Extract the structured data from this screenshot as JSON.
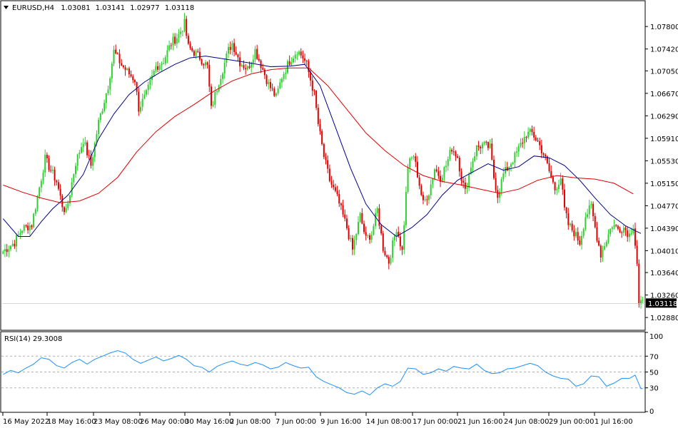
{
  "header": {
    "symbol": "EURUSD,H4",
    "open": "1.03081",
    "high": "1.03141",
    "low": "1.02977",
    "close": "1.03118"
  },
  "colors": {
    "bull": "#32cd32",
    "bear": "#e00000",
    "ma_fast": "#00008b",
    "ma_slow": "#e00000",
    "rsi": "#1e90ff",
    "current_price_label_bg": "#000000"
  },
  "current_price": 1.03118,
  "rsi_title": "RSI(14) 29.3008",
  "chart_data": [
    {
      "type": "line",
      "subtype": "candlestick",
      "title": "EURUSD,H4",
      "ylim": [
        1.027,
        1.082
      ],
      "y_ticks": [
        "1.07800",
        "1.07420",
        "1.07050",
        "1.06670",
        "1.06290",
        "1.05910",
        "1.05530",
        "1.05150",
        "1.04770",
        "1.04390",
        "1.04010",
        "1.03640",
        "1.03260",
        "1.02880"
      ],
      "x_ticks": [
        "16 May 2022",
        "18 May 16:00",
        "23 May 08:00",
        "26 May 00:00",
        "30 May 16:00",
        "2 Jun 08:00",
        "7 Jun 00:00",
        "9 Jun 16:00",
        "14 Jun 08:00",
        "17 Jun 00:00",
        "21 Jun 16:00",
        "24 Jun 08:00",
        "29 Jun 00:00",
        "1 Jul 16:00"
      ],
      "grid": false,
      "price_path": [
        [
          0,
          1.04
        ],
        [
          6,
          1.0415
        ],
        [
          10,
          1.0438
        ],
        [
          15,
          1.0445
        ],
        [
          18,
          1.0492
        ],
        [
          22,
          1.0556
        ],
        [
          28,
          1.0518
        ],
        [
          31,
          1.0478
        ],
        [
          33,
          1.0465
        ],
        [
          38,
          1.055
        ],
        [
          42,
          1.0588
        ],
        [
          46,
          1.0545
        ],
        [
          50,
          1.0618
        ],
        [
          55,
          1.068
        ],
        [
          58,
          1.0738
        ],
        [
          62,
          1.0715
        ],
        [
          66,
          1.07
        ],
        [
          69,
          1.069
        ],
        [
          71,
          1.0642
        ],
        [
          75,
          1.0665
        ],
        [
          80,
          1.0712
        ],
        [
          84,
          1.0722
        ],
        [
          88,
          1.0752
        ],
        [
          92,
          1.0766
        ],
        [
          95,
          1.0785
        ],
        [
          97,
          1.0745
        ],
        [
          103,
          1.0728
        ],
        [
          107,
          1.0712
        ],
        [
          109,
          1.064
        ],
        [
          113,
          1.0688
        ],
        [
          116,
          1.0718
        ],
        [
          118,
          1.074
        ],
        [
          120,
          1.0752
        ],
        [
          124,
          1.072
        ],
        [
          128,
          1.0708
        ],
        [
          132,
          1.074
        ],
        [
          135,
          1.0716
        ],
        [
          139,
          1.0682
        ],
        [
          143,
          1.066
        ],
        [
          146,
          1.0695
        ],
        [
          150,
          1.0722
        ],
        [
          154,
          1.074
        ],
        [
          157,
          1.0728
        ],
        [
          159,
          1.0715
        ],
        [
          163,
          1.0665
        ],
        [
          165,
          1.0615
        ],
        [
          168,
          1.056
        ],
        [
          171,
          1.052
        ],
        [
          175,
          1.049
        ],
        [
          180,
          1.044
        ],
        [
          183,
          1.0402
        ],
        [
          187,
          1.046
        ],
        [
          190,
          1.042
        ],
        [
          193,
          1.043
        ],
        [
          196,
          1.047
        ],
        [
          199,
          1.0406
        ],
        [
          202,
          1.0382
        ],
        [
          206,
          1.044
        ],
        [
          209,
          1.04
        ],
        [
          212,
          1.0545
        ],
        [
          215,
          1.0562
        ],
        [
          217,
          1.053
        ],
        [
          220,
          1.048
        ],
        [
          223,
          1.05
        ],
        [
          226,
          1.054
        ],
        [
          229,
          1.0525
        ],
        [
          232,
          1.0545
        ],
        [
          235,
          1.0575
        ],
        [
          238,
          1.056
        ],
        [
          240,
          1.0525
        ],
        [
          242,
          1.05
        ],
        [
          245,
          1.0545
        ],
        [
          248,
          1.0575
        ],
        [
          251,
          1.058
        ],
        [
          255,
          1.0575
        ],
        [
          257,
          1.0525
        ],
        [
          259,
          1.0495
        ],
        [
          262,
          1.053
        ],
        [
          265,
          1.0545
        ],
        [
          268,
          1.056
        ],
        [
          271,
          1.058
        ],
        [
          274,
          1.0598
        ],
        [
          277,
          1.06
        ],
        [
          280,
          1.0585
        ],
        [
          283,
          1.0565
        ],
        [
          286,
          1.0535
        ],
        [
          289,
          1.0505
        ],
        [
          292,
          1.0525
        ],
        [
          294,
          1.047
        ],
        [
          296,
          1.0445
        ],
        [
          299,
          1.0432
        ],
        [
          302,
          1.0415
        ],
        [
          305,
          1.046
        ],
        [
          308,
          1.0475
        ],
        [
          310,
          1.044
        ],
        [
          313,
          1.0395
        ],
        [
          316,
          1.042
        ],
        [
          319,
          1.0445
        ],
        [
          322,
          1.0438
        ],
        [
          325,
          1.044
        ],
        [
          328,
          1.0428
        ],
        [
          330,
          1.0445
        ],
        [
          332,
          1.038
        ],
        [
          333,
          1.0308
        ],
        [
          335,
          1.0312
        ]
      ],
      "series": [
        {
          "line": "fast moving average",
          "color": "#00008b",
          "points": [
            [
              0,
              1.0455
            ],
            [
              8,
              1.0425
            ],
            [
              14,
              1.0425
            ],
            [
              20,
              1.045
            ],
            [
              26,
              1.0472
            ],
            [
              34,
              1.0495
            ],
            [
              42,
              1.053
            ],
            [
              50,
              1.059
            ],
            [
              58,
              1.0632
            ],
            [
              66,
              1.0665
            ],
            [
              74,
              1.0686
            ],
            [
              82,
              1.0702
            ],
            [
              90,
              1.0716
            ],
            [
              98,
              1.0727
            ],
            [
              106,
              1.073
            ],
            [
              114,
              1.0726
            ],
            [
              122,
              1.0722
            ],
            [
              130,
              1.0718
            ],
            [
              140,
              1.0712
            ],
            [
              150,
              1.0713
            ],
            [
              158,
              1.0716
            ],
            [
              166,
              1.068
            ],
            [
              174,
              1.061
            ],
            [
              182,
              1.054
            ],
            [
              190,
              1.048
            ],
            [
              198,
              1.0445
            ],
            [
              206,
              1.0425
            ],
            [
              214,
              1.044
            ],
            [
              222,
              1.0462
            ],
            [
              230,
              1.0495
            ],
            [
              238,
              1.052
            ],
            [
              246,
              1.0534
            ],
            [
              254,
              1.0548
            ],
            [
              262,
              1.0537
            ],
            [
              270,
              1.0543
            ],
            [
              278,
              1.0561
            ],
            [
              286,
              1.0558
            ],
            [
              294,
              1.0545
            ],
            [
              302,
              1.052
            ],
            [
              310,
              1.049
            ],
            [
              318,
              1.0462
            ],
            [
              326,
              1.0443
            ],
            [
              334,
              1.043
            ]
          ]
        },
        {
          "line": "slow moving average",
          "color": "#e00000",
          "points": [
            [
              0,
              1.0512
            ],
            [
              10,
              1.05
            ],
            [
              20,
              1.049
            ],
            [
              30,
              1.0482
            ],
            [
              40,
              1.0485
            ],
            [
              50,
              1.0498
            ],
            [
              60,
              1.0525
            ],
            [
              70,
              1.0568
            ],
            [
              80,
              1.0602
            ],
            [
              90,
              1.0628
            ],
            [
              100,
              1.0648
            ],
            [
              110,
              1.067
            ],
            [
              120,
              1.0688
            ],
            [
              130,
              1.07
            ],
            [
              140,
              1.0707
            ],
            [
              150,
              1.071
            ],
            [
              160,
              1.071
            ],
            [
              170,
              1.068
            ],
            [
              180,
              1.064
            ],
            [
              190,
              1.06
            ],
            [
              200,
              1.057
            ],
            [
              210,
              1.0545
            ],
            [
              220,
              1.0528
            ],
            [
              230,
              1.0518
            ],
            [
              240,
              1.0512
            ],
            [
              250,
              1.0505
            ],
            [
              260,
              1.0498
            ],
            [
              270,
              1.0505
            ],
            [
              280,
              1.052
            ],
            [
              290,
              1.0528
            ],
            [
              300,
              1.0524
            ],
            [
              310,
              1.0522
            ],
            [
              320,
              1.0515
            ],
            [
              330,
              1.0497
            ]
          ]
        }
      ]
    },
    {
      "type": "line",
      "title": "RSI(14) 29.3008",
      "ylim": [
        0,
        100
      ],
      "y_ticks": [
        "100",
        "70",
        "50",
        "30",
        "0"
      ],
      "levels": [
        70,
        50,
        30
      ],
      "series": [
        {
          "name": "RSI(14)",
          "color": "#1e90ff",
          "points": [
            [
              0,
              47
            ],
            [
              4,
              52
            ],
            [
              8,
              49
            ],
            [
              12,
              55
            ],
            [
              16,
              60
            ],
            [
              20,
              68
            ],
            [
              24,
              66
            ],
            [
              28,
              58
            ],
            [
              32,
              55
            ],
            [
              36,
              62
            ],
            [
              40,
              66
            ],
            [
              44,
              60
            ],
            [
              48,
              66
            ],
            [
              52,
              70
            ],
            [
              56,
              74
            ],
            [
              60,
              77
            ],
            [
              64,
              74
            ],
            [
              68,
              66
            ],
            [
              72,
              61
            ],
            [
              76,
              65
            ],
            [
              80,
              69
            ],
            [
              84,
              64
            ],
            [
              88,
              67
            ],
            [
              92,
              71
            ],
            [
              96,
              66
            ],
            [
              100,
              58
            ],
            [
              104,
              56
            ],
            [
              108,
              50
            ],
            [
              112,
              57
            ],
            [
              116,
              61
            ],
            [
              120,
              64
            ],
            [
              124,
              60
            ],
            [
              128,
              58
            ],
            [
              132,
              62
            ],
            [
              136,
              59
            ],
            [
              140,
              54
            ],
            [
              144,
              56
            ],
            [
              148,
              62
            ],
            [
              152,
              58
            ],
            [
              156,
              55
            ],
            [
              160,
              56
            ],
            [
              164,
              44
            ],
            [
              168,
              38
            ],
            [
              172,
              34
            ],
            [
              176,
              30
            ],
            [
              180,
              24
            ],
            [
              184,
              22
            ],
            [
              188,
              26
            ],
            [
              192,
              21
            ],
            [
              196,
              30
            ],
            [
              200,
              35
            ],
            [
              204,
              32
            ],
            [
              208,
              38
            ],
            [
              212,
              55
            ],
            [
              216,
              54
            ],
            [
              220,
              47
            ],
            [
              224,
              49
            ],
            [
              228,
              54
            ],
            [
              232,
              51
            ],
            [
              236,
              57
            ],
            [
              240,
              55
            ],
            [
              244,
              54
            ],
            [
              248,
              60
            ],
            [
              252,
              52
            ],
            [
              256,
              48
            ],
            [
              260,
              49
            ],
            [
              264,
              54
            ],
            [
              268,
              55
            ],
            [
              272,
              58
            ],
            [
              276,
              61
            ],
            [
              280,
              58
            ],
            [
              284,
              50
            ],
            [
              288,
              45
            ],
            [
              292,
              42
            ],
            [
              296,
              41
            ],
            [
              300,
              32
            ],
            [
              304,
              35
            ],
            [
              308,
              45
            ],
            [
              312,
              44
            ],
            [
              316,
              32
            ],
            [
              320,
              36
            ],
            [
              324,
              42
            ],
            [
              328,
              42
            ],
            [
              331,
              46
            ],
            [
              334,
              29
            ],
            [
              335,
              29
            ]
          ]
        }
      ]
    }
  ]
}
